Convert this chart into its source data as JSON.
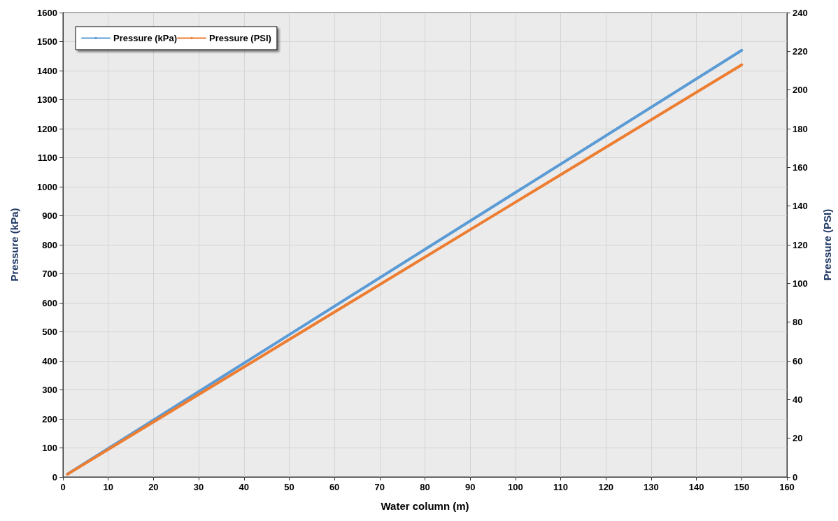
{
  "chart_data": {
    "type": "line",
    "xlabel": "Water column (m)",
    "ylabel": "Pressure (kPa)",
    "y2label": "Pressure (PSI)",
    "x": [
      1,
      50,
      100,
      150
    ],
    "series": [
      {
        "name": "Pressure (kPa)",
        "color": "#5b9bd5",
        "values": [
          10,
          490,
          980,
          1470
        ]
      },
      {
        "name": "Pressure (PSI)",
        "color": "#ed7d31",
        "axis": "y2",
        "values": [
          1.4,
          71,
          142,
          213
        ]
      }
    ],
    "xlim": [
      0,
      160
    ],
    "xticks": [
      0,
      10,
      20,
      30,
      40,
      50,
      60,
      70,
      80,
      90,
      100,
      110,
      120,
      130,
      140,
      150,
      160
    ],
    "ylim": [
      0,
      1600
    ],
    "yticks": [
      0,
      100,
      200,
      300,
      400,
      500,
      600,
      700,
      800,
      900,
      1000,
      1100,
      1200,
      1300,
      1400,
      1500,
      1600
    ],
    "y2lim": [
      0,
      240
    ],
    "y2ticks": [
      0,
      20,
      40,
      60,
      80,
      100,
      120,
      140,
      160,
      180,
      200,
      220,
      240
    ],
    "grid": true,
    "legend": "top left",
    "marker": "none",
    "line_style": "solid"
  }
}
